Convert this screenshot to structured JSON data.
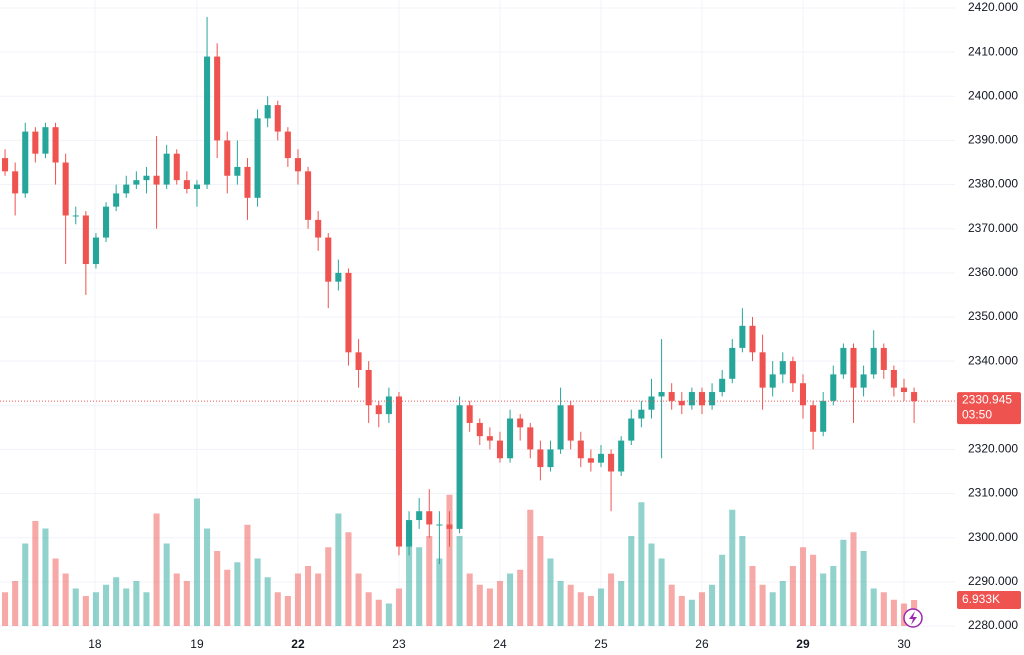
{
  "chart_data": {
    "type": "candlestick",
    "up_color": "#26a69a",
    "down_color": "#ef5350",
    "grid": true,
    "series": [
      {
        "open": [
          2386,
          2383,
          2378,
          2392,
          2387,
          2393,
          2385,
          2373,
          2373,
          2362,
          2368,
          2375,
          2378,
          2380,
          2381,
          2382,
          2380,
          2387,
          2381,
          2379,
          2380,
          2409,
          2390,
          2382,
          2384,
          2377,
          2395,
          2398,
          2392,
          2386,
          2383,
          2372,
          2368,
          2358,
          2360,
          2342,
          2338,
          2330,
          2328,
          2332,
          2298,
          2304,
          2306,
          2303,
          2303,
          2302,
          2330,
          2326,
          2323,
          2322,
          2318,
          2327,
          2325,
          2320,
          2316,
          2320,
          2330,
          2322,
          2318,
          2317,
          2319,
          2315,
          2322,
          2327,
          2329,
          2332,
          2333,
          2331,
          2330,
          2333,
          2330,
          2333,
          2336,
          2343,
          2348,
          2342,
          2334,
          2337,
          2340,
          2335,
          2330,
          2324,
          2331,
          2337,
          2343,
          2334,
          2337,
          2343,
          2338,
          2334,
          2333
        ],
        "high": [
          2388,
          2385,
          2394,
          2393,
          2394,
          2394,
          2387,
          2375,
          2374,
          2369,
          2376,
          2380,
          2382,
          2383,
          2384,
          2391,
          2389,
          2388,
          2383,
          2381,
          2418,
          2412,
          2392,
          2390,
          2386,
          2397,
          2400,
          2399,
          2393,
          2388,
          2384,
          2374,
          2369,
          2363,
          2361,
          2345,
          2340,
          2331,
          2334,
          2333,
          2306,
          2309,
          2311,
          2306,
          2306,
          2332,
          2331,
          2327,
          2325,
          2324,
          2329,
          2328,
          2326,
          2322,
          2322,
          2334,
          2331,
          2324,
          2320,
          2321,
          2320,
          2323,
          2329,
          2331,
          2336,
          2345,
          2335,
          2333,
          2334,
          2334,
          2335,
          2338,
          2345,
          2352,
          2350,
          2346,
          2340,
          2342,
          2341,
          2337,
          2331,
          2333,
          2339,
          2344,
          2344,
          2339,
          2347,
          2344,
          2339,
          2336,
          2334
        ],
        "low": [
          2382,
          2373,
          2377,
          2385,
          2386,
          2380,
          2362,
          2371,
          2355,
          2361,
          2367,
          2374,
          2377,
          2379,
          2378,
          2370,
          2379,
          2380,
          2378,
          2375,
          2379,
          2386,
          2378,
          2380,
          2372,
          2375,
          2393,
          2390,
          2384,
          2380,
          2370,
          2365,
          2352,
          2356,
          2339,
          2334,
          2326,
          2325,
          2326,
          2296,
          2296,
          2302,
          2300,
          2294,
          2298,
          2301,
          2324,
          2321,
          2320,
          2317,
          2317,
          2322,
          2318,
          2313,
          2315,
          2319,
          2320,
          2316,
          2315,
          2316,
          2306,
          2314,
          2321,
          2325,
          2327,
          2318,
          2329,
          2328,
          2329,
          2328,
          2329,
          2332,
          2335,
          2342,
          2340,
          2329,
          2332,
          2335,
          2333,
          2327,
          2320,
          2323,
          2330,
          2336,
          2326,
          2332,
          2336,
          2336,
          2332,
          2331,
          2326
        ],
        "close": [
          2383,
          2378,
          2392,
          2387,
          2393,
          2385,
          2373,
          2373,
          2362,
          2368,
          2375,
          2378,
          2380,
          2381,
          2382,
          2380,
          2387,
          2381,
          2379,
          2380,
          2409,
          2390,
          2382,
          2384,
          2377,
          2395,
          2398,
          2392,
          2386,
          2383,
          2372,
          2368,
          2358,
          2360,
          2342,
          2338,
          2330,
          2328,
          2332,
          2298,
          2304,
          2306,
          2303,
          2303,
          2302,
          2330,
          2326,
          2323,
          2322,
          2318,
          2327,
          2325,
          2320,
          2316,
          2320,
          2330,
          2322,
          2318,
          2317,
          2319,
          2315,
          2322,
          2327,
          2329,
          2332,
          2333,
          2331,
          2330,
          2333,
          2330,
          2333,
          2336,
          2343,
          2348,
          2342,
          2334,
          2337,
          2340,
          2335,
          2330,
          2324,
          2331,
          2337,
          2343,
          2334,
          2337,
          2343,
          2338,
          2334,
          2333,
          2330.945
        ]
      }
    ],
    "volume": {
      "values": [
        9000,
        12000,
        22000,
        28000,
        26000,
        18000,
        14000,
        10000,
        8000,
        9000,
        11000,
        13000,
        10000,
        12000,
        9000,
        30000,
        22000,
        14000,
        12000,
        34000,
        26000,
        20000,
        15000,
        17000,
        27000,
        18000,
        13000,
        9000,
        8000,
        14000,
        16000,
        14000,
        21000,
        30000,
        25000,
        14000,
        9000,
        7000,
        6000,
        10000,
        27000,
        21000,
        24000,
        18000,
        35000,
        24000,
        14000,
        11000,
        10000,
        12000,
        14000,
        15000,
        31000,
        24000,
        18000,
        12000,
        11000,
        9000,
        8000,
        10000,
        14000,
        12000,
        24000,
        33000,
        22000,
        18000,
        11000,
        8000,
        7000,
        9000,
        11000,
        19000,
        31000,
        24000,
        16000,
        11000,
        9000,
        12000,
        16000,
        21000,
        19000,
        14000,
        16000,
        23000,
        25000,
        20000,
        10000,
        9000,
        7000,
        6000,
        6933
      ],
      "value_labels": [
        null,
        null,
        null,
        null,
        null,
        null,
        null,
        null,
        null,
        null,
        null,
        null,
        null,
        null,
        null,
        null,
        null,
        null,
        null,
        null,
        null,
        null,
        null,
        null,
        null,
        null,
        null,
        null,
        null,
        null,
        null,
        null,
        null,
        null,
        null,
        null,
        null,
        null,
        null,
        null,
        null,
        null,
        null,
        null,
        null,
        null,
        null,
        null,
        null,
        null,
        null,
        null,
        null,
        null,
        null,
        null,
        null,
        null,
        null,
        null,
        null,
        null,
        null,
        null,
        null,
        null,
        null,
        null,
        null,
        null,
        null,
        null,
        null,
        null,
        null,
        null,
        null,
        null,
        null,
        null,
        null,
        null,
        null,
        null,
        null,
        null,
        null,
        null,
        null,
        null,
        "6.933K"
      ],
      "ylim": [
        0,
        40000
      ]
    },
    "countdown": "03:50",
    "ylim": [
      2280,
      2420
    ],
    "yticks": [
      {
        "value": 2280,
        "label": "2280.000"
      },
      {
        "value": 2290,
        "label": "2290.000"
      },
      {
        "value": 2300,
        "label": "2300.000"
      },
      {
        "value": 2310,
        "label": "2310.000"
      },
      {
        "value": 2320,
        "label": "2320.000"
      },
      {
        "value": 2330,
        "label": "2330.000"
      },
      {
        "value": 2340,
        "label": "2340.000"
      },
      {
        "value": 2350,
        "label": "2350.000"
      },
      {
        "value": 2360,
        "label": "2360.000"
      },
      {
        "value": 2370,
        "label": "2370.000"
      },
      {
        "value": 2380,
        "label": "2380.000"
      },
      {
        "value": 2390,
        "label": "2390.000"
      },
      {
        "value": 2400,
        "label": "2400.000"
      },
      {
        "value": 2410,
        "label": "2410.000"
      },
      {
        "value": 2420,
        "label": "2420.000"
      }
    ],
    "xlim": [
      -0.5,
      94.05
    ],
    "xticks": [
      {
        "value": 8.9,
        "label": "18"
      },
      {
        "value": 19,
        "label": "19"
      },
      {
        "value": 29,
        "label": "22"
      },
      {
        "value": 39,
        "label": "23"
      },
      {
        "value": 49,
        "label": "24"
      },
      {
        "value": 59,
        "label": "25"
      },
      {
        "value": 69,
        "label": "26"
      },
      {
        "value": 79,
        "label": "29"
      },
      {
        "value": 89,
        "label": "30"
      }
    ]
  }
}
